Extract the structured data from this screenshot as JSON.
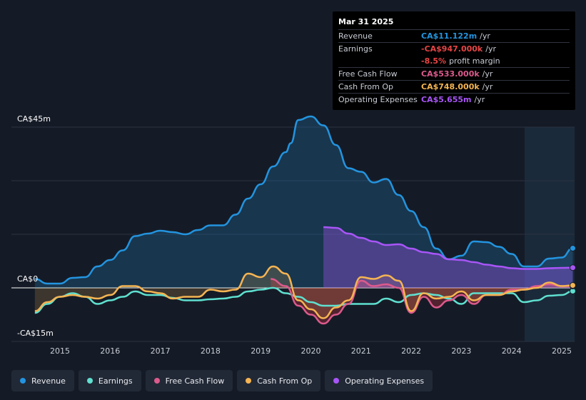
{
  "tooltip": {
    "date": "Mar 31 2025",
    "rows": [
      {
        "label": "Revenue",
        "value": "CA$11.122m",
        "unit": "/yr",
        "color": "#2394df"
      },
      {
        "label": "Earnings",
        "value": "-CA$947.000k",
        "unit": "/yr",
        "color": "#e64545"
      },
      {
        "label": "",
        "value": "-8.5%",
        "unit": "profit margin",
        "color": "#e64545"
      },
      {
        "label": "Free Cash Flow",
        "value": "CA$533.000k",
        "unit": "/yr",
        "color": "#dc5a8c"
      },
      {
        "label": "Cash From Op",
        "value": "CA$748.000k",
        "unit": "/yr",
        "color": "#f5b452"
      },
      {
        "label": "Operating Expenses",
        "value": "CA$5.655m",
        "unit": "/yr",
        "color": "#a855f7"
      }
    ]
  },
  "legend": [
    {
      "label": "Revenue",
      "color": "#2394df"
    },
    {
      "label": "Earnings",
      "color": "#5fe0d0"
    },
    {
      "label": "Free Cash Flow",
      "color": "#dc5a8c"
    },
    {
      "label": "Cash From Op",
      "color": "#f5b452"
    },
    {
      "label": "Operating Expenses",
      "color": "#a855f7"
    }
  ],
  "chart_data": {
    "type": "line",
    "title": "",
    "xlabel": "",
    "ylabel": "",
    "ylim": [
      -15,
      45
    ],
    "y_tick_labels": [
      "CA$45m",
      "CA$0",
      "-CA$15m"
    ],
    "x_tick_labels": [
      "2015",
      "2016",
      "2017",
      "2018",
      "2019",
      "2020",
      "2021",
      "2022",
      "2023",
      "2024",
      "2025"
    ],
    "series": [
      {
        "name": "Revenue",
        "color": "#2394df",
        "points": [
          [
            2014.5,
            2.5
          ],
          [
            2014.75,
            1.2
          ],
          [
            2015.0,
            1.2
          ],
          [
            2015.25,
            2.8
          ],
          [
            2015.5,
            3.0
          ],
          [
            2015.75,
            6.0
          ],
          [
            2016.0,
            7.8
          ],
          [
            2016.25,
            10.5
          ],
          [
            2016.5,
            14.5
          ],
          [
            2016.75,
            15.2
          ],
          [
            2017.0,
            16.0
          ],
          [
            2017.25,
            15.6
          ],
          [
            2017.5,
            15.0
          ],
          [
            2017.75,
            16.2
          ],
          [
            2018.0,
            17.5
          ],
          [
            2018.25,
            17.5
          ],
          [
            2018.5,
            20.5
          ],
          [
            2018.75,
            25.0
          ],
          [
            2019.0,
            29.0
          ],
          [
            2019.25,
            34.0
          ],
          [
            2019.5,
            38.0
          ],
          [
            2019.6,
            40.5
          ],
          [
            2019.75,
            47.0
          ],
          [
            2020.0,
            48.0
          ],
          [
            2020.25,
            45.5
          ],
          [
            2020.5,
            40.0
          ],
          [
            2020.75,
            33.5
          ],
          [
            2021.0,
            32.5
          ],
          [
            2021.25,
            29.5
          ],
          [
            2021.5,
            30.5
          ],
          [
            2021.75,
            26.0
          ],
          [
            2022.0,
            21.5
          ],
          [
            2022.25,
            17.0
          ],
          [
            2022.5,
            11.0
          ],
          [
            2022.75,
            8.0
          ],
          [
            2023.0,
            9.0
          ],
          [
            2023.25,
            13.0
          ],
          [
            2023.5,
            12.8
          ],
          [
            2023.75,
            11.5
          ],
          [
            2024.0,
            9.5
          ],
          [
            2024.25,
            6.0
          ],
          [
            2024.5,
            6.0
          ],
          [
            2024.75,
            8.2
          ],
          [
            2025.0,
            8.5
          ],
          [
            2025.22,
            11.1
          ]
        ]
      },
      {
        "name": "Earnings",
        "color": "#5fe0d0",
        "points": [
          [
            2014.5,
            -7.0
          ],
          [
            2014.75,
            -4.5
          ],
          [
            2015.0,
            -2.5
          ],
          [
            2015.25,
            -1.5
          ],
          [
            2015.5,
            -2.5
          ],
          [
            2015.75,
            -4.5
          ],
          [
            2016.0,
            -3.5
          ],
          [
            2016.25,
            -2.5
          ],
          [
            2016.5,
            -1.0
          ],
          [
            2016.75,
            -2.0
          ],
          [
            2017.0,
            -2.0
          ],
          [
            2017.25,
            -2.8
          ],
          [
            2017.5,
            -3.5
          ],
          [
            2017.75,
            -3.5
          ],
          [
            2018.0,
            -3.2
          ],
          [
            2018.25,
            -3.0
          ],
          [
            2018.5,
            -2.5
          ],
          [
            2018.75,
            -1.0
          ],
          [
            2019.0,
            -0.5
          ],
          [
            2019.25,
            0.0
          ],
          [
            2019.5,
            -1.5
          ],
          [
            2019.75,
            -2.5
          ],
          [
            2020.0,
            -4.0
          ],
          [
            2020.25,
            -5.0
          ],
          [
            2020.5,
            -5.0
          ],
          [
            2020.75,
            -4.5
          ],
          [
            2021.0,
            -4.5
          ],
          [
            2021.25,
            -4.5
          ],
          [
            2021.5,
            -3.0
          ],
          [
            2021.75,
            -4.0
          ],
          [
            2022.0,
            -2.0
          ],
          [
            2022.25,
            -1.5
          ],
          [
            2022.5,
            -2.0
          ],
          [
            2022.75,
            -3.0
          ],
          [
            2023.0,
            -4.5
          ],
          [
            2023.25,
            -1.5
          ],
          [
            2023.5,
            -1.5
          ],
          [
            2023.75,
            -1.5
          ],
          [
            2024.0,
            -1.5
          ],
          [
            2024.25,
            -4.0
          ],
          [
            2024.5,
            -3.5
          ],
          [
            2024.75,
            -2.2
          ],
          [
            2025.0,
            -2.0
          ],
          [
            2025.22,
            -0.9
          ]
        ]
      },
      {
        "name": "Free Cash Flow",
        "color": "#dc5a8c",
        "points": [
          [
            2019.2,
            2.5
          ],
          [
            2019.5,
            0.5
          ],
          [
            2019.75,
            -5.0
          ],
          [
            2020.0,
            -7.5
          ],
          [
            2020.25,
            -10.0
          ],
          [
            2020.5,
            -7.5
          ],
          [
            2020.75,
            -4.5
          ],
          [
            2021.0,
            2.0
          ],
          [
            2021.25,
            0.5
          ],
          [
            2021.5,
            1.0
          ],
          [
            2021.75,
            0.0
          ],
          [
            2022.0,
            -7.0
          ],
          [
            2022.25,
            -2.5
          ],
          [
            2022.5,
            -5.5
          ],
          [
            2022.75,
            -3.5
          ],
          [
            2023.0,
            -2.0
          ],
          [
            2023.25,
            -4.5
          ],
          [
            2023.5,
            -2.0
          ],
          [
            2023.75,
            -2.0
          ],
          [
            2024.0,
            -0.5
          ],
          [
            2024.25,
            -0.5
          ],
          [
            2024.5,
            0.5
          ],
          [
            2024.75,
            1.0
          ],
          [
            2025.0,
            0.5
          ],
          [
            2025.22,
            0.5
          ]
        ]
      },
      {
        "name": "Cash From Op",
        "color": "#f5b452",
        "points": [
          [
            2014.5,
            -6.5
          ],
          [
            2014.75,
            -4.0
          ],
          [
            2015.0,
            -2.5
          ],
          [
            2015.25,
            -2.0
          ],
          [
            2015.5,
            -2.5
          ],
          [
            2015.75,
            -3.0
          ],
          [
            2016.0,
            -2.0
          ],
          [
            2016.25,
            0.5
          ],
          [
            2016.5,
            0.5
          ],
          [
            2016.75,
            -1.0
          ],
          [
            2017.0,
            -1.5
          ],
          [
            2017.25,
            -3.0
          ],
          [
            2017.5,
            -2.5
          ],
          [
            2017.75,
            -2.5
          ],
          [
            2018.0,
            -0.5
          ],
          [
            2018.25,
            -1.0
          ],
          [
            2018.5,
            -0.5
          ],
          [
            2018.75,
            4.0
          ],
          [
            2019.0,
            3.0
          ],
          [
            2019.25,
            6.0
          ],
          [
            2019.5,
            4.0
          ],
          [
            2019.75,
            -3.5
          ],
          [
            2020.0,
            -6.0
          ],
          [
            2020.25,
            -8.5
          ],
          [
            2020.5,
            -5.5
          ],
          [
            2020.75,
            -3.5
          ],
          [
            2021.0,
            3.0
          ],
          [
            2021.25,
            2.5
          ],
          [
            2021.5,
            3.5
          ],
          [
            2021.75,
            2.0
          ],
          [
            2022.0,
            -6.5
          ],
          [
            2022.25,
            -1.5
          ],
          [
            2022.5,
            -3.0
          ],
          [
            2022.75,
            -2.5
          ],
          [
            2023.0,
            -1.0
          ],
          [
            2023.25,
            -3.5
          ],
          [
            2023.5,
            -2.0
          ],
          [
            2023.75,
            -2.0
          ],
          [
            2024.0,
            -1.0
          ],
          [
            2024.25,
            -0.5
          ],
          [
            2024.5,
            0.0
          ],
          [
            2024.75,
            1.5
          ],
          [
            2025.0,
            0.5
          ],
          [
            2025.22,
            0.7
          ]
        ]
      },
      {
        "name": "Operating Expenses",
        "color": "#a855f7",
        "points": [
          [
            2020.25,
            17.0
          ],
          [
            2020.5,
            16.8
          ],
          [
            2020.75,
            15.2
          ],
          [
            2021.0,
            14.0
          ],
          [
            2021.25,
            13.0
          ],
          [
            2021.5,
            12.0
          ],
          [
            2021.75,
            12.2
          ],
          [
            2022.0,
            11.0
          ],
          [
            2022.25,
            10.0
          ],
          [
            2022.5,
            9.5
          ],
          [
            2022.75,
            8.0
          ],
          [
            2023.0,
            7.8
          ],
          [
            2023.25,
            7.2
          ],
          [
            2023.5,
            6.5
          ],
          [
            2023.75,
            6.0
          ],
          [
            2024.0,
            5.5
          ],
          [
            2024.25,
            5.3
          ],
          [
            2024.5,
            5.3
          ],
          [
            2024.75,
            5.5
          ],
          [
            2025.0,
            5.6
          ],
          [
            2025.22,
            5.655
          ]
        ]
      }
    ]
  }
}
